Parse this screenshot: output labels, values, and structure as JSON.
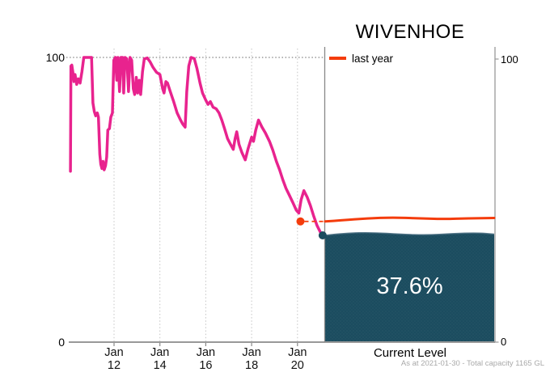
{
  "title": "WIVENHOE",
  "legend": {
    "last_year_label": "last year"
  },
  "current_panel": {
    "percent_label": "37.6%",
    "axis_label": "Current Level"
  },
  "footnote": "As at 2021-01-30 - Total capacity 1165 GL",
  "colors": {
    "history_line": "#e8238e",
    "last_year_line": "#f43c0c",
    "current_fill": "#1b4c5f",
    "current_fill_edge": "#40667a",
    "axis": "#999999",
    "divider": "#888888",
    "gridline": "#c4c4c4",
    "dotted_100": "#666666",
    "tick_text": "#111111",
    "footnote_text": "#a9a9a9"
  },
  "chart_data": {
    "type": "line",
    "title": "WIVENHOE",
    "xlabel": "",
    "ylabel": "",
    "ylim": [
      0,
      100
    ],
    "grid": "vertical-dotted",
    "legend_position": "top-right",
    "y_tick_labels": [
      "100",
      "0"
    ],
    "x_ticks": [
      {
        "month": "Jan",
        "year2": "12",
        "year": 2012
      },
      {
        "month": "Jan",
        "year2": "14",
        "year": 2014
      },
      {
        "month": "Jan",
        "year2": "16",
        "year": 2016
      },
      {
        "month": "Jan",
        "year2": "18",
        "year": 2018
      },
      {
        "month": "Jan",
        "year2": "20",
        "year": 2020
      }
    ],
    "series": [
      {
        "name": "storage history (% full)",
        "points": [
          [
            2010.1,
            60.0
          ],
          [
            2010.12,
            97.0
          ],
          [
            2010.16,
            97.3
          ],
          [
            2010.2,
            95.0
          ],
          [
            2010.25,
            91.5
          ],
          [
            2010.3,
            94.0
          ],
          [
            2010.37,
            90.5
          ],
          [
            2010.44,
            92.5
          ],
          [
            2010.52,
            91.0
          ],
          [
            2010.6,
            95.0
          ],
          [
            2010.68,
            100.0
          ],
          [
            2011.02,
            100.0
          ],
          [
            2011.08,
            84.0
          ],
          [
            2011.14,
            81.0
          ],
          [
            2011.2,
            79.5
          ],
          [
            2011.27,
            80.5
          ],
          [
            2011.32,
            79.0
          ],
          [
            2011.38,
            66.0
          ],
          [
            2011.42,
            62.5
          ],
          [
            2011.47,
            61.0
          ],
          [
            2011.52,
            63.5
          ],
          [
            2011.57,
            60.5
          ],
          [
            2011.63,
            62.0
          ],
          [
            2011.68,
            65.0
          ],
          [
            2011.73,
            74.5
          ],
          [
            2011.8,
            75.0
          ],
          [
            2011.86,
            79.0
          ],
          [
            2011.93,
            80.5
          ],
          [
            2011.99,
            99.0
          ],
          [
            2012.06,
            100.0
          ],
          [
            2012.12,
            92.0
          ],
          [
            2012.17,
            100.0
          ],
          [
            2012.24,
            88.0
          ],
          [
            2012.3,
            100.0
          ],
          [
            2012.37,
            100.0
          ],
          [
            2012.42,
            87.5
          ],
          [
            2012.48,
            100.0
          ],
          [
            2012.56,
            99.5
          ],
          [
            2012.63,
            88.0
          ],
          [
            2012.7,
            100.0
          ],
          [
            2012.77,
            99.0
          ],
          [
            2012.84,
            89.0
          ],
          [
            2012.9,
            87.0
          ],
          [
            2012.97,
            93.0
          ],
          [
            2013.03,
            87.5
          ],
          [
            2013.1,
            92.0
          ],
          [
            2013.16,
            87.0
          ],
          [
            2013.24,
            95.0
          ],
          [
            2013.32,
            99.5
          ],
          [
            2013.45,
            99.8
          ],
          [
            2013.57,
            98.5
          ],
          [
            2013.7,
            96.5
          ],
          [
            2013.85,
            94.8
          ],
          [
            2014.0,
            94.0
          ],
          [
            2014.12,
            89.0
          ],
          [
            2014.18,
            87.5
          ],
          [
            2014.26,
            91.5
          ],
          [
            2014.33,
            91.0
          ],
          [
            2014.45,
            88.0
          ],
          [
            2014.6,
            84.5
          ],
          [
            2014.75,
            80.5
          ],
          [
            2014.9,
            78.0
          ],
          [
            2015.0,
            76.5
          ],
          [
            2015.1,
            75.5
          ],
          [
            2015.17,
            88.0
          ],
          [
            2015.26,
            97.0
          ],
          [
            2015.36,
            100.0
          ],
          [
            2015.5,
            99.6
          ],
          [
            2015.62,
            96.0
          ],
          [
            2015.75,
            91.0
          ],
          [
            2015.86,
            87.5
          ],
          [
            2016.0,
            85.0
          ],
          [
            2016.1,
            83.5
          ],
          [
            2016.2,
            84.5
          ],
          [
            2016.32,
            82.5
          ],
          [
            2016.45,
            82.0
          ],
          [
            2016.58,
            80.5
          ],
          [
            2016.7,
            78.0
          ],
          [
            2016.82,
            75.0
          ],
          [
            2016.95,
            71.5
          ],
          [
            2017.08,
            69.5
          ],
          [
            2017.2,
            67.7
          ],
          [
            2017.28,
            71.5
          ],
          [
            2017.35,
            73.9
          ],
          [
            2017.45,
            69.5
          ],
          [
            2017.58,
            66.5
          ],
          [
            2017.72,
            64.0
          ],
          [
            2017.85,
            68.0
          ],
          [
            2018.0,
            72.0
          ],
          [
            2018.08,
            70.5
          ],
          [
            2018.18,
            74.5
          ],
          [
            2018.3,
            78.0
          ],
          [
            2018.45,
            75.5
          ],
          [
            2018.6,
            73.5
          ],
          [
            2018.78,
            70.5
          ],
          [
            2018.92,
            67.5
          ],
          [
            2019.08,
            63.5
          ],
          [
            2019.22,
            60.5
          ],
          [
            2019.36,
            57.0
          ],
          [
            2019.5,
            54.0
          ],
          [
            2019.65,
            51.5
          ],
          [
            2019.8,
            49.0
          ],
          [
            2019.95,
            46.3
          ],
          [
            2020.06,
            45.3
          ],
          [
            2020.16,
            50.0
          ],
          [
            2020.28,
            53.2
          ],
          [
            2020.42,
            51.0
          ],
          [
            2020.56,
            48.0
          ],
          [
            2020.7,
            44.5
          ],
          [
            2020.85,
            41.0
          ],
          [
            2021.0,
            38.6
          ],
          [
            2021.08,
            37.6
          ]
        ]
      },
      {
        "name": "last year",
        "panel": "current",
        "points_frac": [
          [
            0.0,
            42.4
          ],
          [
            0.1,
            42.8
          ],
          [
            0.25,
            43.5
          ],
          [
            0.4,
            43.8
          ],
          [
            0.55,
            43.5
          ],
          [
            0.7,
            43.2
          ],
          [
            0.85,
            43.5
          ],
          [
            1.0,
            43.6
          ]
        ]
      },
      {
        "name": "current level",
        "panel": "current",
        "value": 37.6,
        "top_wave_frac": [
          [
            0.0,
            37.5
          ],
          [
            0.12,
            38.3
          ],
          [
            0.28,
            38.5
          ],
          [
            0.45,
            37.9
          ],
          [
            0.6,
            37.6
          ],
          [
            0.75,
            38.1
          ],
          [
            0.9,
            38.4
          ],
          [
            1.0,
            37.9
          ]
        ]
      }
    ],
    "markers": [
      {
        "name": "last-year-point",
        "x_year": 2020.13,
        "value": 42.4,
        "color": "#f43c0c"
      },
      {
        "name": "current-point",
        "x_year": 2021.15,
        "value": 37.5,
        "color": "#1b4c5f"
      }
    ]
  }
}
